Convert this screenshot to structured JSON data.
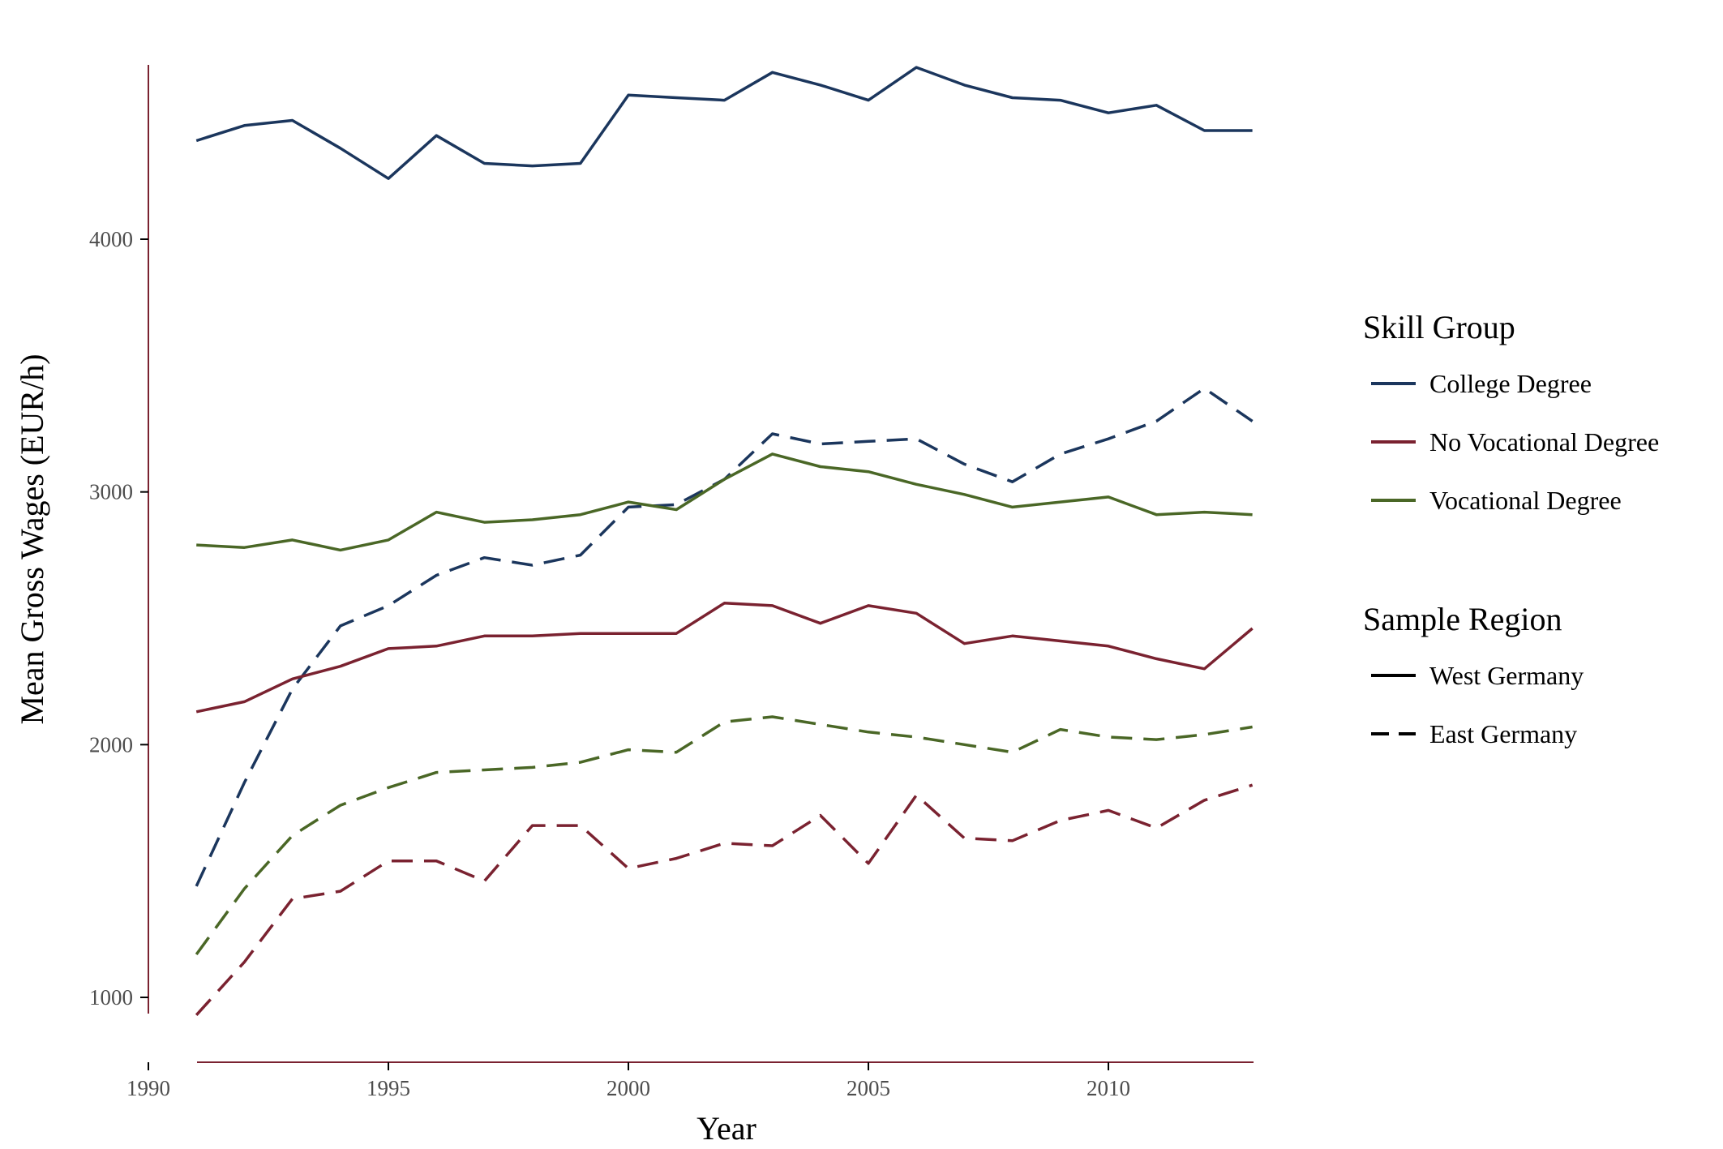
{
  "chart_data": {
    "type": "line",
    "title": "",
    "xlabel": "Year",
    "ylabel": "Mean Gross Wages (EUR/h)",
    "xlim": [
      1990,
      2013
    ],
    "ylim": [
      920,
      4700
    ],
    "x_ticks": [
      "1990",
      "1995",
      "2000",
      "2005",
      "2010"
    ],
    "y_ticks": [
      "1000",
      "2000",
      "3000",
      "4000"
    ],
    "grid": false,
    "legend_placement": "right",
    "x": [
      1991,
      1992,
      1993,
      1994,
      1995,
      1996,
      1997,
      1998,
      1999,
      2000,
      2001,
      2002,
      2003,
      2004,
      2005,
      2006,
      2007,
      2008,
      2009,
      2010,
      2011,
      2012,
      2013
    ],
    "legends": [
      {
        "title": "Skill Group",
        "entries": [
          {
            "label": "College Degree",
            "color": "#1b365d"
          },
          {
            "label": "No Vocational Degree",
            "color": "#7a2230"
          },
          {
            "label": "Vocational Degree",
            "color": "#4a6726"
          }
        ]
      },
      {
        "title": "Sample Region",
        "entries": [
          {
            "label": "West Germany",
            "linetype": "solid"
          },
          {
            "label": "East Germany",
            "linetype": "dashed"
          }
        ]
      }
    ],
    "series": [
      {
        "skill": "College Degree",
        "region": "West Germany",
        "color": "#1b365d",
        "linetype": "solid",
        "values": [
          4390,
          4450,
          4470,
          4360,
          4240,
          4410,
          4300,
          4290,
          4300,
          4570,
          4560,
          4550,
          4660,
          4610,
          4550,
          4680,
          4610,
          4560,
          4550,
          4500,
          4530,
          4430,
          4430
        ]
      },
      {
        "skill": "College Degree",
        "region": "East Germany",
        "color": "#1b365d",
        "linetype": "dashed",
        "values": [
          1440,
          1850,
          2220,
          2470,
          2550,
          2670,
          2740,
          2710,
          2750,
          2940,
          2950,
          3050,
          3230,
          3190,
          3200,
          3210,
          3110,
          3040,
          3150,
          3210,
          3280,
          3410,
          3280
        ]
      },
      {
        "skill": "Vocational Degree",
        "region": "West Germany",
        "color": "#4a6726",
        "linetype": "solid",
        "values": [
          2790,
          2780,
          2810,
          2770,
          2810,
          2920,
          2880,
          2890,
          2910,
          2960,
          2930,
          3050,
          3150,
          3100,
          3080,
          3030,
          2990,
          2940,
          2960,
          2980,
          2910,
          2920,
          2910
        ]
      },
      {
        "skill": "Vocational Degree",
        "region": "East Germany",
        "color": "#4a6726",
        "linetype": "dashed",
        "values": [
          1170,
          1430,
          1640,
          1760,
          1830,
          1890,
          1900,
          1910,
          1930,
          1980,
          1970,
          2090,
          2110,
          2080,
          2050,
          2030,
          2000,
          1970,
          2060,
          2030,
          2020,
          2040,
          2070
        ]
      },
      {
        "skill": "No Vocational Degree",
        "region": "West Germany",
        "color": "#7a2230",
        "linetype": "solid",
        "values": [
          2130,
          2170,
          2260,
          2310,
          2380,
          2390,
          2430,
          2430,
          2440,
          2440,
          2440,
          2560,
          2550,
          2480,
          2550,
          2520,
          2400,
          2430,
          2410,
          2390,
          2340,
          2300,
          2460
        ]
      },
      {
        "skill": "No Vocational Degree",
        "region": "East Germany",
        "color": "#7a2230",
        "linetype": "dashed",
        "values": [
          930,
          1140,
          1390,
          1420,
          1540,
          1540,
          1460,
          1680,
          1680,
          1510,
          1550,
          1610,
          1600,
          1720,
          1530,
          1800,
          1630,
          1620,
          1700,
          1740,
          1670,
          1780,
          1840
        ]
      }
    ]
  }
}
